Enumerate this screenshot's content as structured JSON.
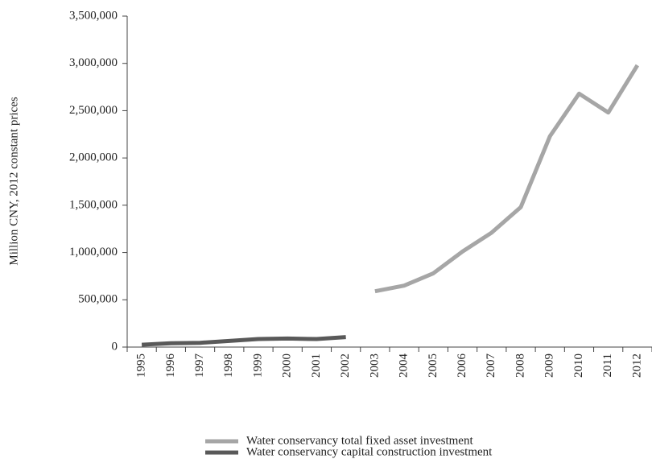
{
  "chart_data": {
    "type": "line",
    "y_label": "Million CNY, 2012 constant prices",
    "categories": [
      "1995",
      "1996",
      "1997",
      "1998",
      "1999",
      "2000",
      "2001",
      "2002",
      "2003",
      "2004",
      "2005",
      "2006",
      "2007",
      "2008",
      "2009",
      "2010",
      "2011",
      "2012"
    ],
    "series": [
      {
        "name": "Water conservancy total fixed asset investment",
        "color": "#a6a6a6",
        "values": [
          null,
          null,
          null,
          null,
          null,
          null,
          null,
          null,
          590000,
          650000,
          780000,
          1010000,
          1210000,
          1480000,
          2230000,
          2680000,
          2480000,
          2980000
        ]
      },
      {
        "name": "Water conservancy capital construction investment",
        "color": "#595959",
        "values": [
          25000,
          40000,
          45000,
          65000,
          85000,
          90000,
          85000,
          105000,
          null,
          null,
          null,
          null,
          null,
          null,
          null,
          null,
          null,
          null
        ]
      }
    ],
    "ylim": [
      0,
      3500000
    ],
    "yticks": [
      0,
      {
        "value": 500000,
        "label": "500,000"
      },
      {
        "value": 1000000,
        "label": "1,000,000"
      },
      {
        "value": 1500000,
        "label": "1,500,000"
      },
      {
        "value": 2000000,
        "label": "2,000,000"
      },
      {
        "value": 2500000,
        "label": "2,500,000"
      },
      {
        "value": 3000000,
        "label": "3,000,000"
      },
      {
        "value": 3500000,
        "label": "3,500,000"
      }
    ],
    "grid": false
  }
}
